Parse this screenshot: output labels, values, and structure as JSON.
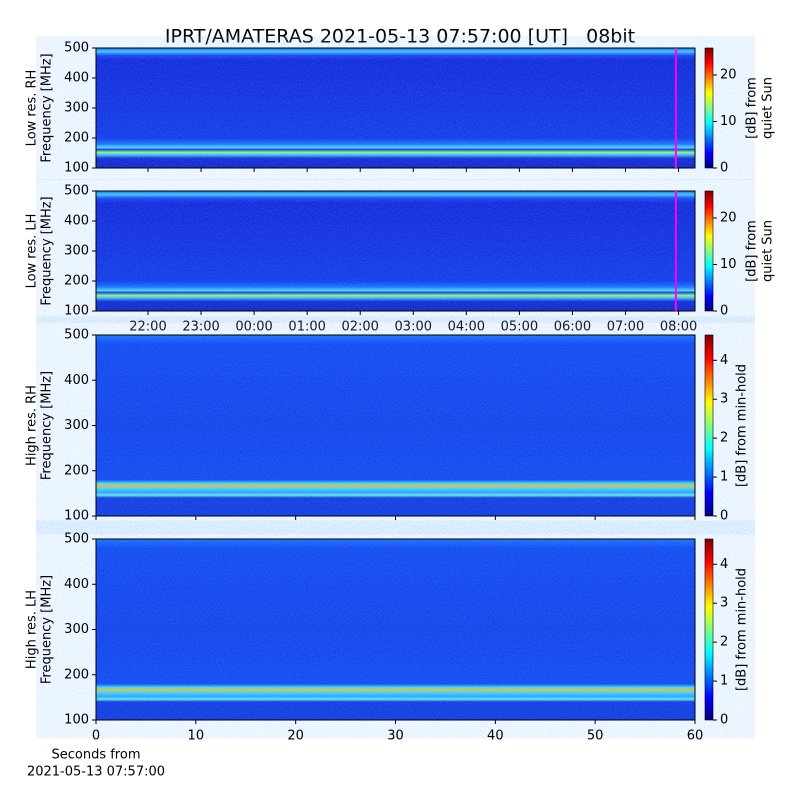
{
  "title": "IPRT/AMATERAS 2021-05-13 07:57:00 [UT]   08bit",
  "chart_data": [
    {
      "type": "heatmap",
      "ylabel": [
        "Low res. RH",
        "Frequency [MHz]"
      ],
      "ylim": [
        100,
        500
      ],
      "yticks": [
        100,
        200,
        300,
        400,
        500
      ],
      "xlim": [
        -2.98,
        8.31
      ],
      "xticks": [
        -2,
        -1,
        0,
        1,
        2,
        3,
        4,
        5,
        6,
        7,
        8
      ],
      "marker_x": 7.95,
      "marker_color": "#ff00ff",
      "colorbar_label": [
        "[dB] from",
        "quiet Sun"
      ],
      "clim": [
        0,
        25.8
      ],
      "cticks": [
        0,
        10,
        20
      ]
    },
    {
      "type": "heatmap",
      "ylabel": [
        "Low res. LH",
        "Frequency [MHz]"
      ],
      "ylim": [
        100,
        500
      ],
      "yticks": [
        100,
        200,
        300,
        400,
        500
      ],
      "xlim": [
        -2.98,
        8.31
      ],
      "xticks": [
        {
          "value": -2,
          "label": "22:00"
        },
        {
          "value": -1,
          "label": "23:00"
        },
        {
          "value": 0,
          "label": "00:00"
        },
        {
          "value": 1,
          "label": "01:00"
        },
        {
          "value": 2,
          "label": "02:00"
        },
        {
          "value": 3,
          "label": "03:00"
        },
        {
          "value": 4,
          "label": "04:00"
        },
        {
          "value": 5,
          "label": "05:00"
        },
        {
          "value": 6,
          "label": "06:00"
        },
        {
          "value": 7,
          "label": "07:00"
        },
        {
          "value": 8,
          "label": "08:00"
        }
      ],
      "marker_x": 7.95,
      "marker_color": "#ff00ff",
      "colorbar_label": [
        "[dB] from",
        "quiet Sun"
      ],
      "clim": [
        0,
        25.8
      ],
      "cticks": [
        0,
        10,
        20
      ]
    },
    {
      "type": "heatmap",
      "ylabel": [
        "High res. RH",
        "Frequency [MHz]"
      ],
      "ylim": [
        100,
        500
      ],
      "yticks": [
        100,
        200,
        300,
        400,
        500
      ],
      "xlim": [
        0,
        60
      ],
      "xticks": [
        0,
        10,
        20,
        30,
        40,
        50,
        60
      ],
      "colorbar_label": [
        "[dB] from min-hold"
      ],
      "clim": [
        0,
        4.65
      ],
      "cticks": [
        0,
        1,
        2,
        3,
        4
      ]
    },
    {
      "type": "heatmap",
      "ylabel": [
        "High res. LH",
        "Frequency [MHz]"
      ],
      "ylim": [
        100,
        500
      ],
      "yticks": [
        100,
        200,
        300,
        400,
        500
      ],
      "xlim": [
        0,
        60
      ],
      "xticks": [
        0,
        10,
        20,
        30,
        40,
        50,
        60
      ],
      "xlabel": [
        "Seconds from",
        "2021-05-13 07:57:00"
      ],
      "colorbar_label": [
        "[dB] from min-hold"
      ],
      "clim": [
        0,
        4.65
      ],
      "cticks": [
        0,
        1,
        2,
        3,
        4
      ]
    }
  ]
}
